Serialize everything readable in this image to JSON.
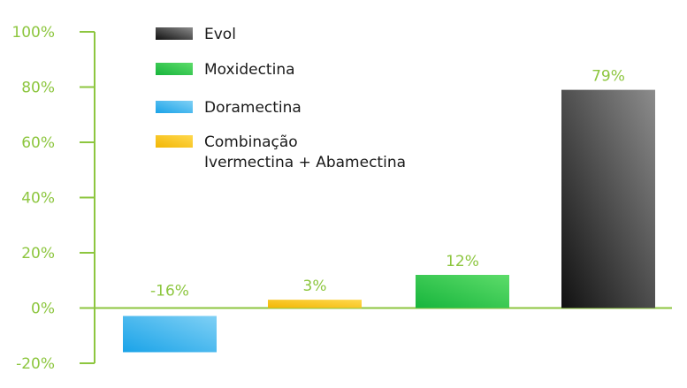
{
  "chart_data": {
    "type": "bar",
    "title": "",
    "xlabel": "",
    "ylabel": "",
    "ylim": [
      -20,
      100
    ],
    "yticks": [
      {
        "value": 100,
        "label": "100%"
      },
      {
        "value": 80,
        "label": "80%"
      },
      {
        "value": 60,
        "label": "60%"
      },
      {
        "value": 40,
        "label": "40%"
      },
      {
        "value": 20,
        "label": "20%"
      },
      {
        "value": 0,
        "label": "0%"
      },
      {
        "value": -20,
        "label": "-20%"
      }
    ],
    "grid": false,
    "legend_position": "top-left",
    "series": [
      {
        "name": "Doramectina",
        "value": -16,
        "label": "-16%",
        "colors": [
          "#1aa3e8",
          "#7fd0f5"
        ]
      },
      {
        "name": "Combinação Ivermectina + Abamectina",
        "value": 3,
        "label": "3%",
        "colors": [
          "#f2b705",
          "#ffd84d"
        ]
      },
      {
        "name": "Moxidectina",
        "value": 12,
        "label": "12%",
        "colors": [
          "#17b53c",
          "#5ddc6a"
        ]
      },
      {
        "name": "Evol",
        "value": 79,
        "label": "79%",
        "colors": [
          "#111111",
          "#8c8c8c"
        ]
      }
    ],
    "legend": [
      {
        "lines": [
          "Evol"
        ],
        "colors": [
          "#111111",
          "#8c8c8c"
        ]
      },
      {
        "lines": [
          "Moxidectina"
        ],
        "colors": [
          "#17b53c",
          "#5ddc6a"
        ]
      },
      {
        "lines": [
          "Doramectina"
        ],
        "colors": [
          "#1aa3e8",
          "#7fd0f5"
        ]
      },
      {
        "lines": [
          "Combinação",
          "Ivermectina + Abamectina"
        ],
        "colors": [
          "#f2b705",
          "#ffd84d"
        ]
      }
    ],
    "axis_color": "#8dc63f",
    "label_color": "#8dc63f"
  }
}
